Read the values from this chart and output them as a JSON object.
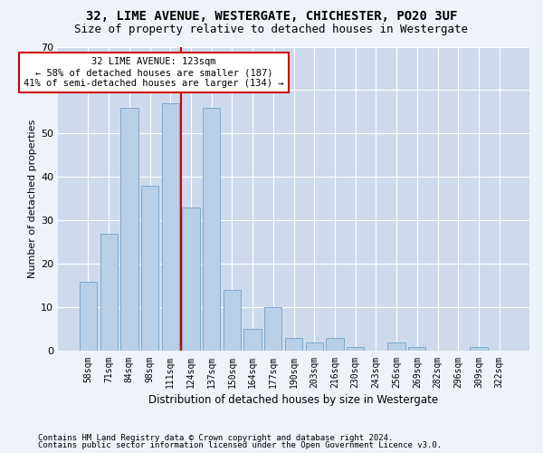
{
  "title": "32, LIME AVENUE, WESTERGATE, CHICHESTER, PO20 3UF",
  "subtitle": "Size of property relative to detached houses in Westergate",
  "xlabel": "Distribution of detached houses by size in Westergate",
  "ylabel": "Number of detached properties",
  "categories": [
    "58sqm",
    "71sqm",
    "84sqm",
    "98sqm",
    "111sqm",
    "124sqm",
    "137sqm",
    "150sqm",
    "164sqm",
    "177sqm",
    "190sqm",
    "203sqm",
    "216sqm",
    "230sqm",
    "243sqm",
    "256sqm",
    "269sqm",
    "282sqm",
    "296sqm",
    "309sqm",
    "322sqm"
  ],
  "values": [
    16,
    27,
    56,
    38,
    57,
    33,
    56,
    14,
    5,
    10,
    3,
    2,
    3,
    1,
    0,
    2,
    1,
    0,
    0,
    1,
    0
  ],
  "bar_color": "#b8cfe8",
  "bar_edge_color": "#7baad0",
  "vline_idx": 5,
  "property_sqm": 123,
  "pct_smaller": 58,
  "count_smaller": 187,
  "pct_larger_semi": 41,
  "count_larger_semi": 134,
  "annot_edge_color": "#cc0000",
  "vline_color": "#cc0000",
  "ylim_max": 70,
  "yticks": [
    0,
    10,
    20,
    30,
    40,
    50,
    60,
    70
  ],
  "footnote1": "Contains HM Land Registry data © Crown copyright and database right 2024.",
  "footnote2": "Contains public sector information licensed under the Open Government Licence v3.0.",
  "bg_color": "#eef3fa",
  "plot_bg_color": "#cddaed",
  "title_fontsize": 10,
  "subtitle_fontsize": 9,
  "tick_fontsize": 7,
  "ylabel_fontsize": 8,
  "xlabel_fontsize": 8.5,
  "footnote_fontsize": 6.5,
  "annot_fontsize": 7.5
}
